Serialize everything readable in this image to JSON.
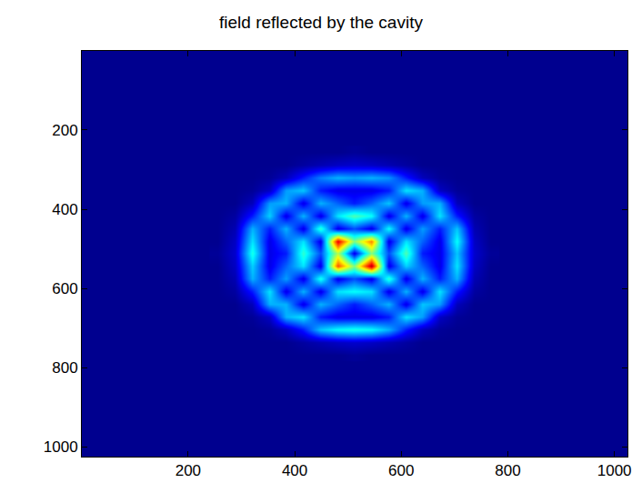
{
  "chart_data": {
    "type": "heatmap",
    "title": "field reflected by the cavity",
    "color": "jet",
    "x": [
      256,
      288,
      320,
      352,
      384,
      416,
      448,
      480,
      512,
      544,
      576,
      608,
      640,
      672,
      704,
      736,
      768
    ],
    "y": [
      256,
      288,
      320,
      352,
      384,
      416,
      448,
      480,
      512,
      544,
      576,
      608,
      640,
      672,
      704,
      736,
      768
    ],
    "z": [
      [
        0,
        0,
        0,
        0,
        0,
        0,
        0,
        0,
        0.01,
        0,
        0,
        0,
        0,
        0,
        0,
        0,
        0
      ],
      [
        0,
        0,
        0,
        0,
        0,
        0.02,
        0.04,
        0.06,
        0.07,
        0.06,
        0.04,
        0.02,
        0,
        0,
        0,
        0,
        0
      ],
      [
        0,
        0,
        0,
        0.01,
        0.05,
        0.15,
        0.25,
        0.3,
        0.28,
        0.3,
        0.27,
        0.15,
        0.05,
        0.01,
        0,
        0,
        0
      ],
      [
        0,
        0,
        0.01,
        0.06,
        0.28,
        0.32,
        0.15,
        0.1,
        0.1,
        0.1,
        0.15,
        0.35,
        0.3,
        0.06,
        0.01,
        0,
        0
      ],
      [
        0,
        0,
        0.05,
        0.28,
        0.3,
        0.1,
        0.3,
        0.22,
        0.15,
        0.22,
        0.32,
        0.1,
        0.28,
        0.3,
        0.05,
        0,
        0
      ],
      [
        0,
        0.02,
        0.15,
        0.33,
        0.1,
        0.3,
        0.1,
        0.35,
        0.45,
        0.38,
        0.1,
        0.3,
        0.1,
        0.35,
        0.15,
        0.02,
        0
      ],
      [
        0,
        0.04,
        0.3,
        0.15,
        0.3,
        0.1,
        0.42,
        0.1,
        0.2,
        0.1,
        0.38,
        0.1,
        0.28,
        0.15,
        0.32,
        0.04,
        0
      ],
      [
        0,
        0.06,
        0.35,
        0.1,
        0.22,
        0.35,
        0.1,
        0.9,
        0.5,
        0.75,
        0.1,
        0.35,
        0.22,
        0.1,
        0.38,
        0.06,
        0
      ],
      [
        0.01,
        0.07,
        0.4,
        0.1,
        0.15,
        0.42,
        0.2,
        0.55,
        0.1,
        0.5,
        0.2,
        0.45,
        0.15,
        0.1,
        0.32,
        0.07,
        0.01
      ],
      [
        0,
        0.06,
        0.33,
        0.1,
        0.22,
        0.35,
        0.1,
        0.8,
        0.5,
        0.95,
        0.1,
        0.33,
        0.22,
        0.1,
        0.35,
        0.06,
        0
      ],
      [
        0,
        0.04,
        0.3,
        0.15,
        0.28,
        0.1,
        0.4,
        0.1,
        0.2,
        0.1,
        0.42,
        0.1,
        0.3,
        0.15,
        0.3,
        0.04,
        0
      ],
      [
        0,
        0.02,
        0.15,
        0.35,
        0.1,
        0.3,
        0.1,
        0.35,
        0.38,
        0.35,
        0.1,
        0.3,
        0.1,
        0.35,
        0.15,
        0.02,
        0
      ],
      [
        0,
        0,
        0.05,
        0.3,
        0.3,
        0.1,
        0.3,
        0.22,
        0.15,
        0.22,
        0.3,
        0.1,
        0.32,
        0.28,
        0.05,
        0,
        0
      ],
      [
        0,
        0,
        0.01,
        0.06,
        0.3,
        0.35,
        0.15,
        0.1,
        0.1,
        0.1,
        0.15,
        0.35,
        0.28,
        0.06,
        0.01,
        0,
        0
      ],
      [
        0,
        0,
        0,
        0.01,
        0.05,
        0.15,
        0.32,
        0.38,
        0.4,
        0.38,
        0.3,
        0.15,
        0.05,
        0.01,
        0,
        0,
        0
      ],
      [
        0,
        0,
        0,
        0,
        0,
        0.02,
        0.04,
        0.06,
        0.07,
        0.06,
        0.04,
        0.02,
        0,
        0,
        0,
        0,
        0
      ],
      [
        0,
        0,
        0,
        0,
        0,
        0,
        0,
        0,
        0.01,
        0,
        0,
        0,
        0,
        0,
        0,
        0,
        0
      ]
    ],
    "zlim": [
      0,
      1
    ],
    "xlim": [
      0.5,
      1024.5
    ],
    "ylim": [
      1024.5,
      0.5
    ],
    "xticks": [
      200,
      400,
      600,
      800,
      1000
    ],
    "yticks": [
      200,
      400,
      600,
      800,
      1000
    ],
    "grid": false
  }
}
